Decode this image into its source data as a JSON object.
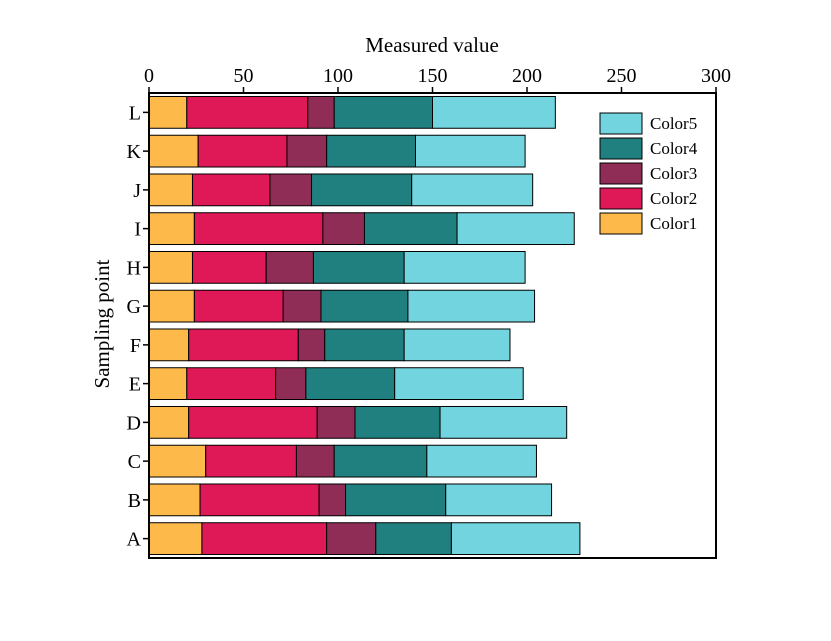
{
  "chart_data": {
    "type": "bar",
    "orientation": "horizontal",
    "stacked": true,
    "title": "",
    "xlabel": "Measured value",
    "ylabel": "Sampling point",
    "xlim": [
      0,
      300
    ],
    "x_ticks": [
      0,
      50,
      100,
      150,
      200,
      250,
      300
    ],
    "x_axis_position": "top",
    "grid": false,
    "legend_position": "top-right",
    "categories": [
      "A",
      "B",
      "C",
      "D",
      "E",
      "F",
      "G",
      "H",
      "I",
      "J",
      "K",
      "L"
    ],
    "series": [
      {
        "name": "Color1",
        "color": "#FDB94A",
        "values": [
          28,
          27,
          30,
          21,
          20,
          21,
          24,
          23,
          24,
          23,
          26,
          20
        ]
      },
      {
        "name": "Color2",
        "color": "#DF1858",
        "values": [
          66,
          63,
          48,
          68,
          47,
          58,
          47,
          39,
          68,
          41,
          47,
          64
        ]
      },
      {
        "name": "Color3",
        "color": "#902D56",
        "values": [
          26,
          14,
          20,
          20,
          16,
          14,
          20,
          25,
          22,
          22,
          21,
          14
        ]
      },
      {
        "name": "Color4",
        "color": "#208080",
        "values": [
          40,
          53,
          49,
          45,
          47,
          42,
          46,
          48,
          49,
          53,
          47,
          52
        ]
      },
      {
        "name": "Color5",
        "color": "#72D4DF",
        "values": [
          68,
          56,
          58,
          67,
          68,
          56,
          67,
          64,
          62,
          64,
          58,
          65
        ]
      }
    ]
  }
}
